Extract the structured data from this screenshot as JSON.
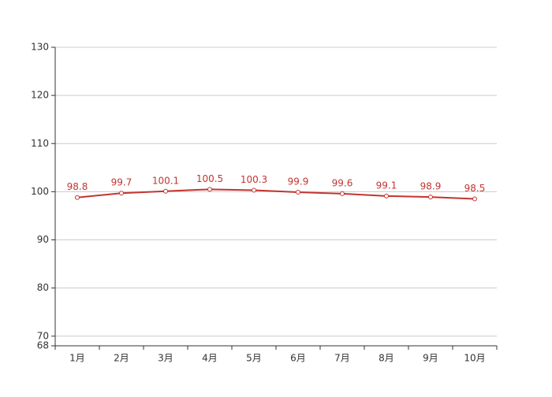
{
  "chart_data": {
    "type": "line",
    "categories": [
      "1月",
      "2月",
      "3月",
      "4月",
      "5月",
      "6月",
      "7月",
      "8月",
      "9月",
      "10月"
    ],
    "series": [
      {
        "color": "#c23531",
        "values": [
          98.8,
          99.7,
          100.1,
          100.5,
          100.3,
          99.9,
          99.6,
          99.1,
          98.9,
          98.5
        ]
      }
    ],
    "ylim": [
      68,
      130
    ],
    "yticks": [
      68,
      70,
      80,
      90,
      100,
      110,
      120,
      130
    ],
    "grid": true
  }
}
